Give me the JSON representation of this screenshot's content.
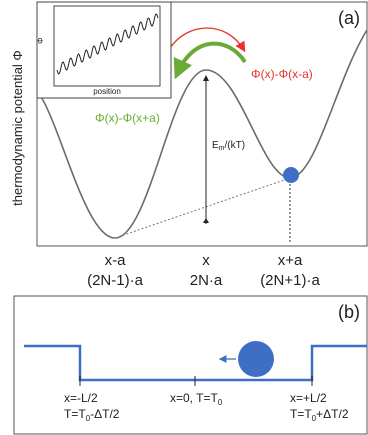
{
  "panel_a": {
    "tag": "(a)",
    "y_axis_label": "thermodynamic potential Φ",
    "inset": {
      "y_label": "Φ",
      "x_label": "position"
    },
    "red_label": "Φ(x)-Φ(x-a)",
    "green_label": "Φ(x)-Φ(x+a)",
    "barrier_label": "E",
    "barrier_sub": "m",
    "barrier_tail": "/(kT)",
    "ticks": [
      {
        "top": "x-a",
        "bottom": "(2N-1)·a"
      },
      {
        "top": "x",
        "bottom": "2N·a"
      },
      {
        "top": "x+a",
        "bottom": "(2N+1)·a"
      }
    ],
    "colors": {
      "red": "#e8322a",
      "green": "#6aaa35",
      "ball": "#3f6fc4"
    }
  },
  "panel_b": {
    "tag": "(b)",
    "positions": [
      {
        "line1": "x=-L/2",
        "line2_pre": "T=T",
        "line2_sub": "0",
        "line2_post": "-ΔT/2"
      },
      {
        "line1_pre": "x=0, T=T",
        "line1_sub": "0"
      },
      {
        "line1": "x=+L/2",
        "line2_pre": "T=T",
        "line2_sub": "0",
        "line2_post": "+ΔT/2"
      }
    ],
    "colors": {
      "line": "#3f6fc4",
      "ball": "#3f6fc4"
    }
  }
}
